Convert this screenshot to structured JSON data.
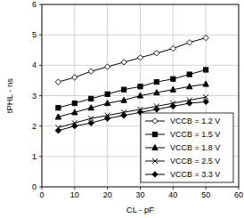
{
  "chart_data": {
    "type": "line",
    "x_label": "CL - pF",
    "y_label": "tPHL - ns",
    "x": [
      5,
      10,
      15,
      20,
      25,
      30,
      35,
      40,
      45,
      50
    ],
    "xlim": [
      0,
      60
    ],
    "xticks": [
      0,
      10,
      20,
      30,
      40,
      50,
      60
    ],
    "ylim": [
      0,
      6
    ],
    "yticks": [
      0,
      1,
      2,
      3,
      4,
      5,
      6
    ],
    "grid": true,
    "legend": "lower right",
    "series": [
      {
        "name": "VCCB = 1.2 V",
        "color": "#000000",
        "marker": "diamond-open",
        "line_style": "solid",
        "values": [
          3.45,
          3.6,
          3.8,
          3.95,
          4.1,
          4.25,
          4.4,
          4.55,
          4.75,
          4.9
        ]
      },
      {
        "name": "VCCB = 1.5 V",
        "color": "#000000",
        "marker": "square",
        "line_style": "solid",
        "values": [
          2.6,
          2.75,
          2.9,
          3.05,
          3.2,
          3.3,
          3.45,
          3.55,
          3.7,
          3.85
        ]
      },
      {
        "name": "VCCB = 1.8 V",
        "color": "#000000",
        "marker": "triangle",
        "line_style": "solid",
        "values": [
          2.3,
          2.45,
          2.6,
          2.75,
          2.85,
          3.0,
          3.1,
          3.2,
          3.3,
          3.38
        ]
      },
      {
        "name": "VCCB = 2.5 V",
        "color": "#000000",
        "marker": "x",
        "line_style": "solid",
        "values": [
          1.95,
          2.1,
          2.25,
          2.35,
          2.45,
          2.55,
          2.65,
          2.75,
          2.85,
          2.95
        ]
      },
      {
        "name": "VCCB = 3.3 V",
        "color": "#000000",
        "marker": "diamond",
        "line_style": "solid",
        "values": [
          1.85,
          2.0,
          2.1,
          2.25,
          2.35,
          2.45,
          2.55,
          2.65,
          2.75,
          2.8
        ]
      }
    ]
  }
}
